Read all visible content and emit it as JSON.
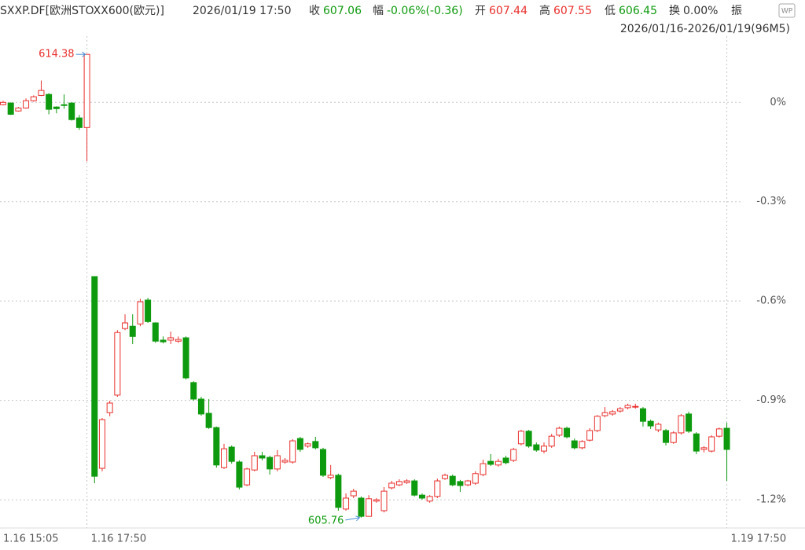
{
  "header": {
    "title": "SXXP.DF[欧洲STOXX600(欧元)]",
    "time": "2026/01/19 17:50",
    "close_label": "收",
    "close": 607.06,
    "change_label": "幅",
    "change": "-0.06%(-0.36)",
    "open_label": "开",
    "open": 607.44,
    "high_label": "高",
    "high": 607.55,
    "low_label": "低",
    "low": 606.45,
    "turnover_label": "换",
    "turnover": "0.00%",
    "amplitude_label": "振",
    "range": "2026/01/16-2026/01/19(96M5)",
    "badge": "WP"
  },
  "chart_data": {
    "type": "candlestick",
    "up_color": "#e8302d",
    "down_color": "#0e9a0e",
    "categories": [
      "1.16 15:05",
      null,
      null,
      null,
      null,
      null,
      null,
      null,
      null,
      null,
      null,
      "1.16 17:50",
      null,
      null,
      null,
      null,
      null,
      null,
      null,
      null,
      null,
      null,
      null,
      null,
      null,
      null,
      null,
      null,
      null,
      null,
      null,
      null,
      null,
      null,
      null,
      null,
      null,
      null,
      null,
      null,
      null,
      null,
      null,
      null,
      null,
      null,
      null,
      null,
      null,
      null,
      null,
      null,
      null,
      null,
      null,
      null,
      null,
      null,
      null,
      null,
      null,
      null,
      null,
      null,
      null,
      null,
      null,
      null,
      null,
      null,
      null,
      null,
      null,
      null,
      null,
      null,
      null,
      null,
      null,
      null,
      null,
      null,
      null,
      null,
      null,
      null,
      null,
      null,
      null,
      null,
      null,
      null,
      null,
      null,
      null,
      "1.19 17:50"
    ],
    "open": [
      -0.007,
      -0.002,
      -0.026,
      -0.017,
      0.005,
      0.021,
      0.024,
      -0.014,
      -0.007,
      -0.002,
      -0.047,
      -0.076,
      -0.526,
      -1.105,
      -0.937,
      -0.884,
      -0.683,
      -0.676,
      -0.669,
      -0.597,
      -0.666,
      -0.718,
      -0.718,
      -0.721,
      -0.711,
      -0.846,
      -0.896,
      -0.939,
      -0.982,
      -1.103,
      -1.041,
      -1.086,
      -1.155,
      -1.11,
      -1.067,
      -1.072,
      -1.107,
      -1.086,
      -1.086,
      -1.015,
      -1.038,
      -1.024,
      -1.048,
      -1.133,
      -1.126,
      -1.228,
      -1.188,
      -1.195,
      -1.25,
      -1.204,
      -1.233,
      -1.164,
      -1.155,
      -1.148,
      -1.143,
      -1.186,
      -1.204,
      -1.19,
      -1.136,
      -1.129,
      -1.145,
      -1.155,
      -1.15,
      -1.124,
      -1.084,
      -1.095,
      -1.074,
      -1.081,
      -1.031,
      -0.993,
      -1.034,
      -1.053,
      -1.038,
      -1.005,
      -0.984,
      -1.022,
      -1.043,
      -1.02,
      -0.991,
      -0.946,
      -0.941,
      -0.932,
      -0.922,
      -0.92,
      -0.925,
      -0.963,
      -0.989,
      -0.991,
      -1.027,
      -0.998,
      -0.941,
      -1.001,
      -1.048,
      -1.053,
      -1.008,
      -0.984
    ],
    "high": [
      0.005,
      0,
      -0.014,
      0.012,
      0.021,
      0.066,
      0.028,
      -0.012,
      0.024,
      0,
      -0.038,
      0.145,
      -0.526,
      -0.953,
      -0.901,
      -0.688,
      -0.64,
      -0.64,
      -0.593,
      -0.59,
      -0.664,
      -0.707,
      -0.692,
      -0.707,
      -0.707,
      -0.842,
      -0.889,
      -0.896,
      -0.979,
      -1.031,
      -1.036,
      -1.081,
      -1.103,
      -1.055,
      -1.055,
      -1.067,
      -1.05,
      -1.074,
      -1.017,
      -1.01,
      -1.027,
      -1.01,
      -1.043,
      -1.095,
      -1.121,
      -1.181,
      -1.167,
      -1.19,
      -1.186,
      -1.195,
      -1.162,
      -1.143,
      -1.138,
      -1.138,
      -1.138,
      -1.181,
      -1.186,
      -1.136,
      -1.121,
      -1.124,
      -1.14,
      -1.14,
      -1.114,
      -1.079,
      -1.062,
      -1.076,
      -1.067,
      -1.043,
      -0.989,
      -0.989,
      -1.027,
      -1.027,
      -1.001,
      -0.979,
      -0.979,
      -1.015,
      -1.02,
      -0.984,
      -0.944,
      -0.92,
      -0.929,
      -0.92,
      -0.91,
      -0.91,
      -0.92,
      -0.958,
      -0.967,
      -0.986,
      -0.993,
      -0.941,
      -0.934,
      -0.996,
      -1.038,
      -1.005,
      -0.982,
      -0.967
    ],
    "low": [
      -0.009,
      -0.038,
      -0.028,
      -0.019,
      0.002,
      0.019,
      -0.036,
      -0.033,
      -0.019,
      -0.055,
      -0.083,
      -0.178,
      -1.15,
      -1.114,
      -0.948,
      -0.889,
      -0.688,
      -0.73,
      -0.676,
      -0.666,
      -0.726,
      -0.728,
      -0.73,
      -0.726,
      -0.837,
      -0.901,
      -0.946,
      -0.986,
      -1.103,
      -1.107,
      -1.091,
      -1.169,
      -1.159,
      -1.114,
      -1.081,
      -1.124,
      -1.114,
      -1.091,
      -1.091,
      -1.055,
      -1.043,
      -1.048,
      -1.131,
      -1.138,
      -1.233,
      -1.233,
      -1.195,
      -1.254,
      -1.25,
      -1.209,
      -1.238,
      -1.169,
      -1.159,
      -1.152,
      -1.19,
      -1.2,
      -1.209,
      -1.195,
      -1.14,
      -1.159,
      -1.176,
      -1.159,
      -1.155,
      -1.129,
      -1.098,
      -1.1,
      -1.093,
      -1.086,
      -1.036,
      -1.043,
      -1.055,
      -1.06,
      -1.043,
      -1.01,
      -1.015,
      -1.048,
      -1.048,
      -1.024,
      -0.996,
      -0.951,
      -0.946,
      -0.937,
      -0.927,
      -0.925,
      -0.979,
      -0.986,
      -0.996,
      -1.036,
      -1.031,
      -1.003,
      -0.998,
      -1.062,
      -1.057,
      -1.057,
      -1.012,
      -1.143
    ],
    "close": [
      0,
      -0.036,
      -0.017,
      0.005,
      0.017,
      0.036,
      -0.021,
      -0.019,
      -0.009,
      -0.052,
      -0.076,
      0.145,
      -1.129,
      -0.958,
      -0.908,
      -0.695,
      -0.666,
      -0.707,
      -0.602,
      -0.662,
      -0.721,
      -0.723,
      -0.711,
      -0.716,
      -0.832,
      -0.896,
      -0.941,
      -0.982,
      -1.095,
      -1.046,
      -1.084,
      -1.162,
      -1.107,
      -1.067,
      -1.074,
      -1.107,
      -1.067,
      -1.081,
      -1.022,
      -1.048,
      -1.031,
      -1.043,
      -1.126,
      -1.126,
      -1.223,
      -1.195,
      -1.174,
      -1.25,
      -1.197,
      -1.2,
      -1.174,
      -1.15,
      -1.145,
      -1.143,
      -1.186,
      -1.195,
      -1.19,
      -1.143,
      -1.126,
      -1.155,
      -1.157,
      -1.143,
      -1.121,
      -1.091,
      -1.093,
      -1.084,
      -1.088,
      -1.048,
      -0.993,
      -1.038,
      -1.05,
      -1.038,
      -1.008,
      -0.984,
      -1.01,
      -1.043,
      -1.024,
      -0.991,
      -0.948,
      -0.937,
      -0.934,
      -0.925,
      -0.915,
      -0.918,
      -0.963,
      -0.977,
      -0.972,
      -1.027,
      -0.998,
      -0.946,
      -0.993,
      -1.053,
      -1.043,
      -1.01,
      -0.986,
      -1.048
    ],
    "max_label": 614.38,
    "min_label": 605.76,
    "ylim": [
      -1.29,
      0.2
    ],
    "yticks": [
      {
        "value": 0,
        "label": "0%"
      },
      {
        "value": -0.3,
        "label": "-0.3%"
      },
      {
        "value": -0.6,
        "label": "-0.6%"
      },
      {
        "value": -0.9,
        "label": "-0.9%"
      },
      {
        "value": -1.2,
        "label": "-1.2%"
      }
    ],
    "grid": true
  }
}
